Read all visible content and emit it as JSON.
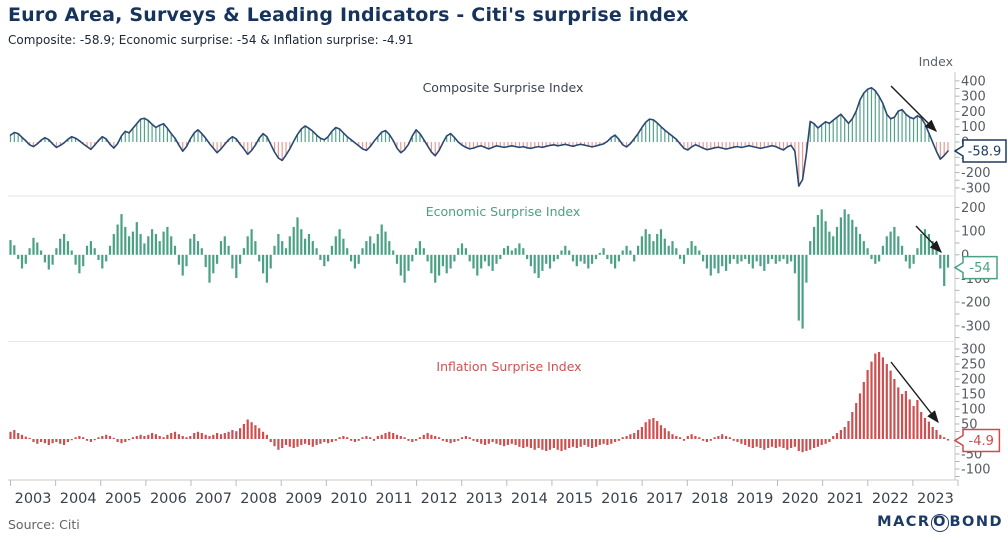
{
  "header": {
    "title": "Euro Area, Surveys & Leading Indicators - Citi's surprise index",
    "subtitle": "Composite: -58.9; Economic surprise: -54 & Inflation surprise: -4.91"
  },
  "axis": {
    "unit_label": "Index",
    "start_year": 2003,
    "frequency": "monthly",
    "year_labels": [
      "2003",
      "2004",
      "2005",
      "2006",
      "2007",
      "2008",
      "2009",
      "2010",
      "2011",
      "2012",
      "2013",
      "2014",
      "2015",
      "2016",
      "2017",
      "2018",
      "2019",
      "2020",
      "2021",
      "2022",
      "2023"
    ]
  },
  "footer": {
    "source": "Source: Citi",
    "logo_pre": "MACR",
    "logo_o": "O",
    "logo_post": "BOND"
  },
  "chart_data": [
    {
      "type": "line",
      "style": "line-with-vertical-hatch-fill",
      "name": "Composite Surprise Index",
      "colors": {
        "line": "#2b4873",
        "positive": "#53a287",
        "negative": "#e69a92",
        "title": "#3c4350",
        "callout": "#1e3a5f"
      },
      "ylim": [
        -340,
        445
      ],
      "label_step": 100,
      "tick_step": 50,
      "last_value": -58.9,
      "callout_label": "-58.9",
      "values": [
        45,
        62,
        55,
        30,
        8,
        -18,
        -30,
        -12,
        12,
        28,
        15,
        -12,
        -35,
        -22,
        -5,
        18,
        35,
        25,
        8,
        -12,
        -30,
        -48,
        -20,
        10,
        35,
        20,
        -15,
        -40,
        -10,
        40,
        70,
        60,
        90,
        120,
        150,
        155,
        140,
        115,
        95,
        110,
        120,
        90,
        55,
        25,
        -20,
        -60,
        -30,
        20,
        60,
        80,
        55,
        25,
        -10,
        -40,
        -70,
        -45,
        -15,
        15,
        35,
        20,
        -15,
        -45,
        -80,
        -55,
        -20,
        25,
        55,
        35,
        -15,
        -65,
        -105,
        -120,
        -85,
        -45,
        5,
        50,
        85,
        105,
        90,
        70,
        45,
        25,
        15,
        35,
        70,
        95,
        85,
        60,
        35,
        15,
        -5,
        -25,
        -45,
        -55,
        -30,
        5,
        35,
        65,
        75,
        50,
        10,
        -40,
        -70,
        -50,
        -15,
        40,
        80,
        55,
        15,
        -25,
        -65,
        -90,
        -55,
        -5,
        40,
        55,
        30,
        0,
        -20,
        -35,
        -45,
        -40,
        -30,
        -25,
        -35,
        -45,
        -35,
        -25,
        -30,
        -35,
        -30,
        -25,
        -30,
        -35,
        -30,
        -38,
        -42,
        -35,
        -30,
        -35,
        -28,
        -22,
        -18,
        -25,
        -20,
        -15,
        -22,
        -28,
        -20,
        -15,
        -20,
        -26,
        -32,
        -26,
        -18,
        -12,
        5,
        30,
        45,
        18,
        -18,
        -32,
        -10,
        22,
        55,
        95,
        130,
        150,
        145,
        125,
        100,
        78,
        58,
        38,
        18,
        -12,
        -42,
        -52,
        -32,
        -18,
        -28,
        -40,
        -50,
        -44,
        -38,
        -34,
        -40,
        -46,
        -40,
        -34,
        -30,
        -36,
        -30,
        -24,
        -30,
        -36,
        -42,
        -36,
        -30,
        -24,
        -30,
        -42,
        -52,
        -32,
        -22,
        -60,
        -288,
        -245,
        -75,
        135,
        120,
        92,
        112,
        132,
        122,
        142,
        162,
        182,
        152,
        122,
        152,
        202,
        275,
        320,
        345,
        355,
        335,
        298,
        252,
        182,
        152,
        162,
        202,
        212,
        182,
        162,
        152,
        172,
        158,
        118,
        58,
        -2,
        -62,
        -112,
        -88,
        -58.9
      ]
    },
    {
      "type": "bar",
      "name": "Economic Surprise Index",
      "colors": {
        "bar": "#4aa183",
        "title": "#4aa183",
        "callout": "#4aa183"
      },
      "ylim": [
        -360,
        240
      ],
      "label_step": 100,
      "tick_step": 50,
      "last_value": -54,
      "callout_label": "-54",
      "values": [
        62,
        40,
        -18,
        -58,
        -38,
        28,
        72,
        52,
        18,
        -32,
        -62,
        -42,
        28,
        68,
        88,
        58,
        18,
        -42,
        -78,
        -48,
        38,
        58,
        28,
        -22,
        -58,
        -28,
        38,
        88,
        128,
        172,
        118,
        78,
        98,
        138,
        88,
        48,
        78,
        108,
        88,
        58,
        98,
        118,
        78,
        38,
        -42,
        -88,
        -48,
        68,
        88,
        58,
        28,
        -52,
        -118,
        -78,
        -38,
        58,
        78,
        38,
        -58,
        -98,
        -38,
        28,
        78,
        108,
        58,
        -28,
        -78,
        -118,
        -58,
        38,
        88,
        58,
        28,
        78,
        118,
        158,
        108,
        68,
        88,
        58,
        28,
        -22,
        -48,
        -28,
        38,
        78,
        108,
        68,
        28,
        -28,
        -58,
        -38,
        28,
        58,
        78,
        48,
        88,
        128,
        98,
        58,
        18,
        -38,
        -88,
        -118,
        -68,
        -28,
        28,
        58,
        28,
        -28,
        -78,
        -118,
        -88,
        -48,
        -78,
        -58,
        -28,
        28,
        48,
        28,
        -28,
        -58,
        -88,
        -58,
        -28,
        -48,
        -68,
        -38,
        -18,
        28,
        38,
        18,
        28,
        48,
        28,
        -18,
        -48,
        -78,
        -98,
        -68,
        -38,
        -58,
        -28,
        -18,
        18,
        38,
        18,
        -28,
        -48,
        -28,
        -38,
        -58,
        -38,
        -18,
        8,
        28,
        -18,
        -38,
        -58,
        -28,
        18,
        38,
        18,
        -28,
        38,
        78,
        108,
        88,
        58,
        88,
        108,
        68,
        38,
        58,
        28,
        -18,
        -38,
        28,
        58,
        38,
        18,
        -28,
        -58,
        -88,
        -58,
        -78,
        -48,
        -68,
        -38,
        -18,
        -38,
        -28,
        -18,
        -38,
        -58,
        -28,
        -48,
        -68,
        -38,
        -18,
        -38,
        -28,
        -18,
        -38,
        -28,
        -78,
        -278,
        -312,
        -118,
        58,
        118,
        168,
        192,
        142,
        98,
        78,
        118,
        158,
        192,
        172,
        148,
        118,
        88,
        58,
        28,
        -18,
        -38,
        -28,
        38,
        78,
        98,
        118,
        78,
        38,
        -28,
        -58,
        -38,
        28,
        88,
        108,
        88,
        58,
        28,
        -58,
        -132,
        -54
      ]
    },
    {
      "type": "bar",
      "name": "Inflation Surprise Index",
      "colors": {
        "bar": "#cd4f4f",
        "title": "#cc5252",
        "callout": "#cc4b4b"
      },
      "ylim": [
        -130,
        320
      ],
      "label_step": 50,
      "tick_step": 25,
      "last_value": -4.9,
      "callout_label": "-4.9",
      "values": [
        24,
        30,
        20,
        14,
        8,
        4,
        -10,
        -16,
        -10,
        -14,
        -20,
        -14,
        -10,
        -16,
        -20,
        -10,
        -4,
        6,
        10,
        6,
        -6,
        -10,
        -4,
        6,
        10,
        14,
        10,
        4,
        -10,
        -14,
        -10,
        -4,
        6,
        10,
        14,
        10,
        14,
        20,
        16,
        10,
        6,
        14,
        20,
        24,
        16,
        10,
        6,
        10,
        20,
        24,
        20,
        14,
        10,
        14,
        20,
        16,
        20,
        24,
        30,
        26,
        36,
        50,
        65,
        56,
        46,
        36,
        24,
        14,
        -10,
        -24,
        -36,
        -30,
        -20,
        -26,
        -30,
        -26,
        -20,
        -16,
        -20,
        -26,
        -20,
        -16,
        -10,
        -14,
        -10,
        -6,
        6,
        10,
        6,
        -6,
        -10,
        -6,
        6,
        10,
        6,
        -6,
        10,
        14,
        20,
        24,
        20,
        14,
        10,
        6,
        -6,
        -10,
        -6,
        6,
        14,
        20,
        14,
        10,
        6,
        -6,
        -10,
        -14,
        -10,
        -6,
        6,
        10,
        6,
        -6,
        -10,
        -16,
        -20,
        -16,
        -10,
        -16,
        -20,
        -24,
        -20,
        -16,
        -20,
        -26,
        -30,
        -26,
        -30,
        -36,
        -30,
        -36,
        -40,
        -36,
        -30,
        -36,
        -40,
        -36,
        -30,
        -26,
        -30,
        -26,
        -20,
        -26,
        -30,
        -26,
        -20,
        -16,
        -20,
        -16,
        -10,
        -6,
        6,
        10,
        16,
        20,
        30,
        40,
        56,
        66,
        70,
        60,
        46,
        36,
        26,
        16,
        10,
        6,
        -6,
        10,
        16,
        10,
        6,
        -6,
        -10,
        -6,
        6,
        10,
        16,
        10,
        6,
        -6,
        -10,
        -16,
        -20,
        -26,
        -30,
        -26,
        -30,
        -36,
        -30,
        -26,
        -30,
        -26,
        -30,
        -36,
        -30,
        -26,
        -40,
        -44,
        -40,
        -36,
        -30,
        -26,
        -20,
        -16,
        -10,
        10,
        20,
        30,
        40,
        60,
        90,
        120,
        152,
        190,
        230,
        258,
        285,
        290,
        272,
        250,
        228,
        200,
        172,
        150,
        160,
        132,
        110,
        130,
        90,
        70,
        58,
        40,
        30,
        14,
        6,
        -4.9
      ]
    }
  ]
}
